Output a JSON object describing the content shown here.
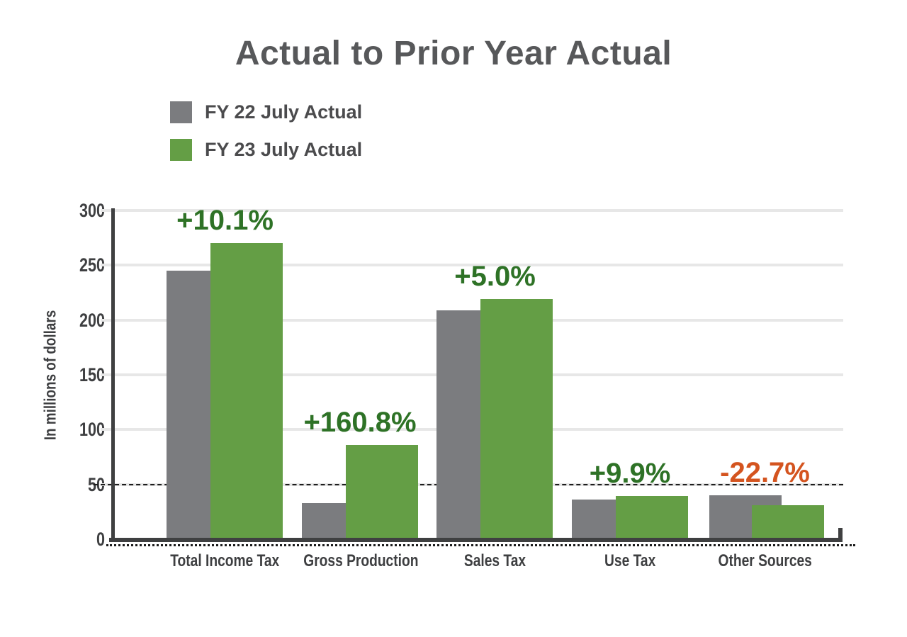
{
  "title": "Actual to Prior Year Actual",
  "legend": [
    {
      "label": "FY 22 July Actual",
      "color": "#7b7c7f"
    },
    {
      "label": "FY 23 July Actual",
      "color": "#649e45"
    }
  ],
  "chart_data": {
    "type": "bar",
    "title": "Actual to Prior Year Actual",
    "categories": [
      "Total Income Tax",
      "Gross Production",
      "Sales Tax",
      "Use Tax",
      "Other Sources"
    ],
    "series": [
      {
        "name": "FY 22 July Actual",
        "color": "#7b7c7f",
        "values": [
          245,
          33,
          209,
          36,
          40
        ]
      },
      {
        "name": "FY 23 July Actual",
        "color": "#649e45",
        "values": [
          270,
          86,
          219.5,
          39.6,
          31
        ]
      }
    ],
    "pct_labels": [
      {
        "text": "+10.1%",
        "color": "#2e7226"
      },
      {
        "text": "+160.8%",
        "color": "#2e7226"
      },
      {
        "text": "+5.0%",
        "color": "#2e7226"
      },
      {
        "text": "+9.9%",
        "color": "#2e7226"
      },
      {
        "text": "-22.7%",
        "color": "#d4541f"
      }
    ],
    "xlabel": "",
    "ylabel": "In millions of dollars",
    "ylim": [
      0,
      300
    ],
    "yticks": [
      0,
      50,
      100,
      150,
      200,
      250,
      300
    ],
    "grid": true,
    "dashed_gridline_value": 50,
    "legend_position": "top-left",
    "colors": {
      "grid": "#e7e7e7",
      "axis": "#3f4041",
      "axis_text": "#3e3f41",
      "title_text": "#57585a",
      "legend_text": "#4b4b4d"
    }
  }
}
